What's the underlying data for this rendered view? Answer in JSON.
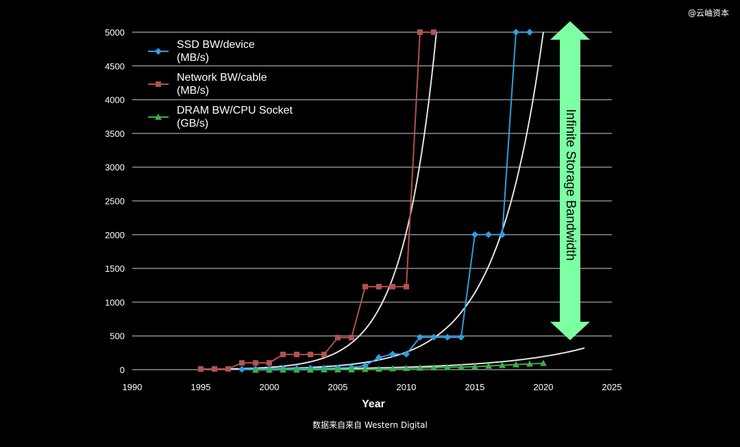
{
  "watermark": "@云岫资本",
  "source_note": "数据来自来自 Western Digital",
  "colors": {
    "background": "#000000",
    "grid": "#8c8c8c",
    "ssd": "#2e9fe0",
    "network": "#b3514f",
    "dram": "#3fae4a",
    "trend": "#e6e6e6",
    "arrow": "#7dffa4"
  },
  "chart_data": {
    "type": "line",
    "title": "",
    "xlabel": "Year",
    "ylabel": "",
    "xlim": [
      1990,
      2025
    ],
    "ylim": [
      0,
      5000
    ],
    "xticks": [
      "1990",
      "1995",
      "2000",
      "2005",
      "2010",
      "2015",
      "2020",
      "2025"
    ],
    "yticks": [
      "0",
      "500",
      "1000",
      "1500",
      "2000",
      "2500",
      "3000",
      "3500",
      "4000",
      "4500",
      "5000"
    ],
    "grid": true,
    "legend_position": "top-left",
    "series": [
      {
        "name": "SSD BW/device (MB/s)",
        "legend_line1": "SSD BW/device",
        "legend_line2": "(MB/s)",
        "marker": "diamond",
        "x": [
          1998,
          1999,
          2000,
          2001,
          2002,
          2003,
          2004,
          2005,
          2006,
          2007,
          2008,
          2009,
          2010,
          2011,
          2012,
          2013,
          2014,
          2015,
          2016,
          2017,
          2018,
          2019
        ],
        "y": [
          5,
          10,
          10,
          15,
          15,
          20,
          20,
          25,
          30,
          60,
          180,
          230,
          230,
          480,
          480,
          480,
          480,
          2000,
          2000,
          2000,
          5000,
          5000
        ]
      },
      {
        "name": "Network BW/cable (MB/s)",
        "legend_line1": "Network BW/cable",
        "legend_line2": "(MB/s)",
        "marker": "square",
        "x": [
          1995,
          1996,
          1997,
          1998,
          1999,
          2000,
          2001,
          2002,
          2003,
          2004,
          2005,
          2006,
          2007,
          2008,
          2009,
          2010,
          2011,
          2012
        ],
        "y": [
          10,
          10,
          12,
          100,
          100,
          100,
          225,
          225,
          225,
          225,
          475,
          475,
          1230,
          1230,
          1230,
          1230,
          5000,
          5000
        ]
      },
      {
        "name": "DRAM BW/CPU Socket (GB/s)",
        "legend_line1": "DRAM BW/CPU Socket",
        "legend_line2": "(GB/s)",
        "marker": "triangle",
        "x": [
          1999,
          2000,
          2001,
          2002,
          2003,
          2004,
          2005,
          2006,
          2007,
          2008,
          2009,
          2010,
          2011,
          2012,
          2013,
          2014,
          2015,
          2016,
          2017,
          2018,
          2019,
          2020
        ],
        "y": [
          -5,
          -5,
          -3,
          -3,
          -2,
          0,
          0,
          0,
          5,
          10,
          15,
          20,
          25,
          30,
          35,
          40,
          45,
          55,
          65,
          75,
          85,
          95
        ]
      }
    ],
    "annotation": "Infinite Storage Bandwidth"
  }
}
